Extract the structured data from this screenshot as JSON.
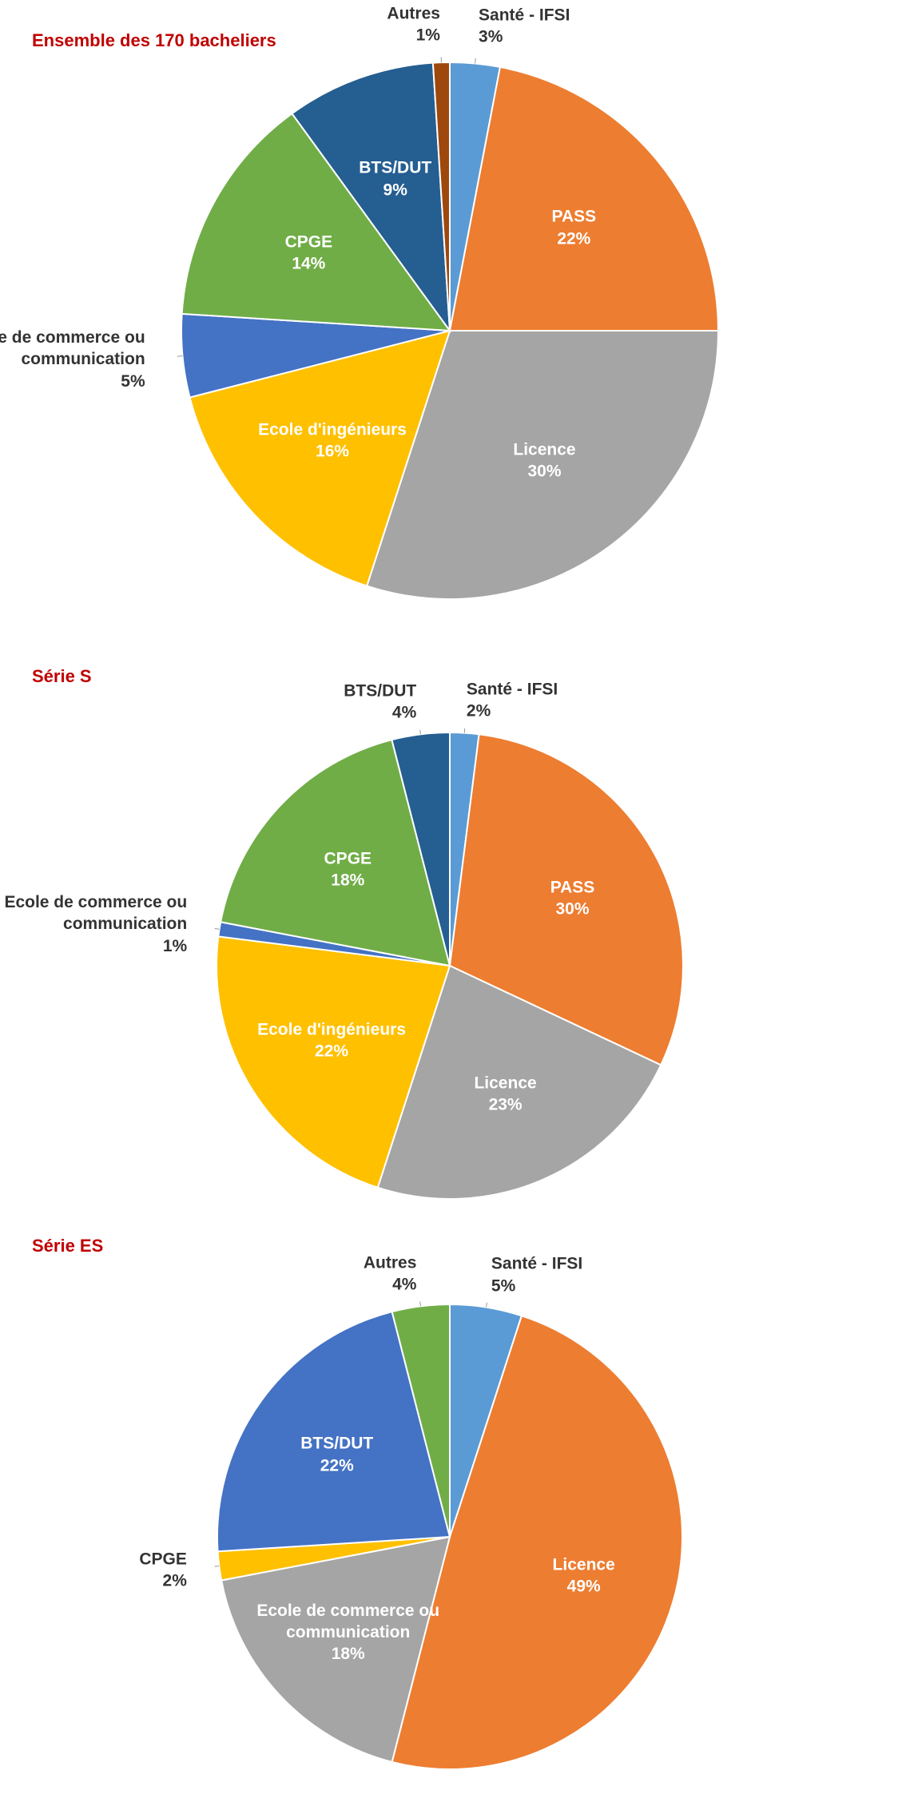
{
  "chart_data": [
    {
      "type": "pie",
      "title": "Ensemble des 170 bacheliers",
      "categories": [
        "Santé - IFSI",
        "PASS",
        "Licence",
        "Ecole d'ingénieurs",
        "Ecole de commerce ou communication",
        "CPGE",
        "BTS/DUT",
        "Autres"
      ],
      "values": [
        3,
        22,
        30,
        16,
        5,
        14,
        9,
        1
      ],
      "value_labels": [
        "3%",
        "22%",
        "30%",
        "16%",
        "5%",
        "14%",
        "9%",
        "1%"
      ],
      "colors": [
        "#5b9bd5",
        "#ed7d31",
        "#a5a5a5",
        "#ffc000",
        "#4472c4",
        "#70ad47",
        "#255e91",
        "#9e480e"
      ]
    },
    {
      "type": "pie",
      "title": "Série S",
      "categories": [
        "Santé - IFSI",
        "PASS",
        "Licence",
        "Ecole d'ingénieurs",
        "Ecole de commerce ou communication",
        "CPGE",
        "BTS/DUT"
      ],
      "values": [
        2,
        30,
        23,
        22,
        1,
        18,
        4
      ],
      "value_labels": [
        "2%",
        "30%",
        "23%",
        "22%",
        "1%",
        "18%",
        "4%"
      ],
      "colors": [
        "#5b9bd5",
        "#ed7d31",
        "#a5a5a5",
        "#ffc000",
        "#4472c4",
        "#70ad47",
        "#255e91"
      ]
    },
    {
      "type": "pie",
      "title": "Série ES",
      "categories": [
        "Santé - IFSI",
        "Licence",
        "Ecole de commerce ou communication",
        "CPGE",
        "BTS/DUT",
        "Autres"
      ],
      "values": [
        5,
        49,
        18,
        2,
        22,
        4
      ],
      "value_labels": [
        "5%",
        "49%",
        "18%",
        "2%",
        "22%",
        "4%"
      ],
      "colors": [
        "#5b9bd5",
        "#ed7d31",
        "#a5a5a5",
        "#ffc000",
        "#4472c4",
        "#70ad47"
      ]
    }
  ]
}
